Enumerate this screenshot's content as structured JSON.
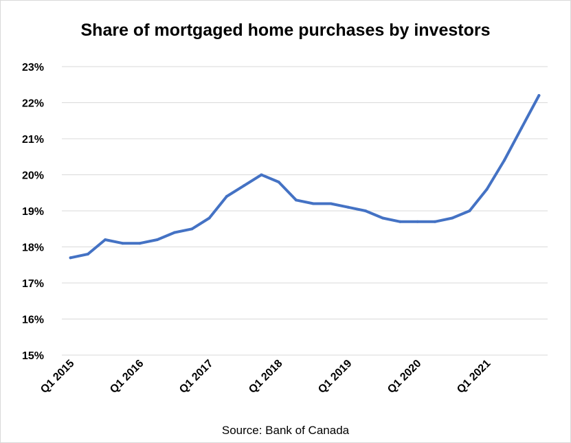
{
  "chart_data": {
    "type": "line",
    "title": "Share of mortgaged home purchases by investors",
    "source": "Source: Bank of Canada",
    "xlabel": "",
    "ylabel": "",
    "ylim": [
      15,
      23
    ],
    "ytick_labels": [
      "15%",
      "16%",
      "17%",
      "18%",
      "19%",
      "20%",
      "21%",
      "22%",
      "23%"
    ],
    "xtick_labels": [
      "Q1 2015",
      "Q1 2016",
      "Q1 2017",
      "Q1 2018",
      "Q1 2019",
      "Q1 2020",
      "Q1 2021"
    ],
    "grid": "horizontal",
    "legend": "none",
    "series_color": "#4472c4",
    "x": [
      "Q1 2015",
      "Q2 2015",
      "Q3 2015",
      "Q4 2015",
      "Q1 2016",
      "Q2 2016",
      "Q3 2016",
      "Q4 2016",
      "Q1 2017",
      "Q2 2017",
      "Q3 2017",
      "Q4 2017",
      "Q1 2018",
      "Q2 2018",
      "Q3 2018",
      "Q4 2018",
      "Q1 2019",
      "Q2 2019",
      "Q3 2019",
      "Q4 2019",
      "Q1 2020",
      "Q2 2020",
      "Q3 2020",
      "Q4 2020",
      "Q1 2021",
      "Q2 2021",
      "Q3 2021",
      "Q4 2021"
    ],
    "series": [
      {
        "values": [
          17.7,
          17.8,
          18.2,
          18.1,
          18.1,
          18.2,
          18.4,
          18.5,
          18.8,
          19.4,
          19.7,
          20.0,
          19.8,
          19.3,
          19.2,
          19.2,
          19.1,
          19.0,
          18.8,
          18.7,
          18.7,
          18.7,
          18.8,
          19.0,
          19.6,
          20.4,
          21.3,
          22.2
        ]
      }
    ]
  }
}
